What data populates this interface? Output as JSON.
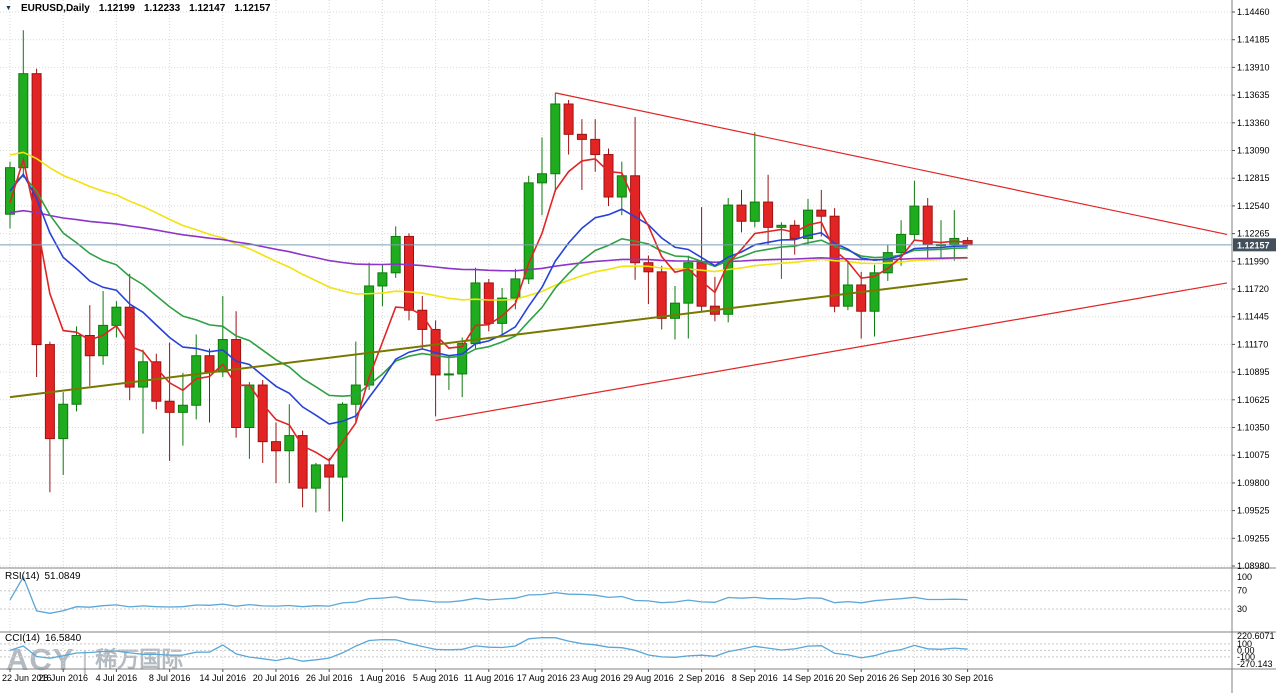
{
  "header": {
    "dropdown_icon": "▼",
    "symbol": "EURUSD,Daily",
    "open": "1.12199",
    "high": "1.12233",
    "low": "1.12147",
    "close": "1.12157"
  },
  "watermark": {
    "brand": "ACY",
    "divider": "|",
    "cjk": "稀万国际"
  },
  "price_axis": {
    "labels": [
      "1.14460",
      "1.14185",
      "1.13910",
      "1.13635",
      "1.13360",
      "1.13090",
      "1.12815",
      "1.12540",
      "1.12265",
      "1.11990",
      "1.11720",
      "1.11445",
      "1.11170",
      "1.10895",
      "1.10625",
      "1.10350",
      "1.10075",
      "1.09800",
      "1.09525",
      "1.09255",
      "1.08980"
    ],
    "current_price_label": "1.12157"
  },
  "time_axis": {
    "labels": [
      {
        "text": "22 Jun 2016",
        "index": 0
      },
      {
        "text": "28 Jun 2016",
        "index": 4
      },
      {
        "text": "4 Jul 2016",
        "index": 8
      },
      {
        "text": "8 Jul 2016",
        "index": 12
      },
      {
        "text": "14 Jul 2016",
        "index": 16
      },
      {
        "text": "20 Jul 2016",
        "index": 20
      },
      {
        "text": "26 Jul 2016",
        "index": 24
      },
      {
        "text": "1 Aug 2016",
        "index": 28
      },
      {
        "text": "5 Aug 2016",
        "index": 32
      },
      {
        "text": "11 Aug 2016",
        "index": 36
      },
      {
        "text": "17 Aug 2016",
        "index": 40
      },
      {
        "text": "23 Aug 2016",
        "index": 44
      },
      {
        "text": "29 Aug 2016",
        "index": 48
      },
      {
        "text": "2 Sep 2016",
        "index": 52
      },
      {
        "text": "8 Sep 2016",
        "index": 56
      },
      {
        "text": "14 Sep 2016",
        "index": 60
      },
      {
        "text": "20 Sep 2016",
        "index": 64
      },
      {
        "text": "26 Sep 2016",
        "index": 68
      },
      {
        "text": "30 Sep 2016",
        "index": 72
      }
    ]
  },
  "indicators": {
    "rsi": {
      "label": "RSI(14)",
      "value": "51.0849",
      "period": 14,
      "range": [
        0,
        100
      ],
      "levels": [
        70,
        30
      ],
      "axis_labels": [
        {
          "text": "100",
          "value": 100
        },
        {
          "text": "70",
          "value": 70
        },
        {
          "text": "30",
          "value": 30
        }
      ],
      "line_color": "#5ba7d7"
    },
    "cci": {
      "label": "CCI(14)",
      "value": "16.5840",
      "period": 14,
      "range": [
        -270.143,
        220.6071
      ],
      "levels": [
        100,
        0,
        -100
      ],
      "axis_labels": [
        {
          "text": "220.6071",
          "value": 220.6071
        },
        {
          "text": "100",
          "value": 100
        },
        {
          "text": "0.00",
          "value": 0
        },
        {
          "text": "-100",
          "value": -100
        },
        {
          "text": "-270.143",
          "value": -270.143
        }
      ],
      "line_color": "#5ba7d7"
    }
  },
  "chart_data": {
    "type": "candlestick",
    "title": "EURUSD Daily",
    "symbol": "EURUSD",
    "timeframe": "Daily",
    "price_axis_range": [
      1.0898,
      1.1446
    ],
    "current_price": 1.12157,
    "up_color": "#1fad1f",
    "up_border": "#0d7a0d",
    "down_color": "#e32424",
    "down_border": "#9c1212",
    "grid_color": "#d9d9d9",
    "bid_line_color": "#7e9fb5",
    "price_label_box_color": "#43505c",
    "candles": [
      [
        "22 Jun 2016",
        1.1246,
        1.1298,
        1.1232,
        1.1292
      ],
      [
        "23 Jun 2016",
        1.1292,
        1.1428,
        1.1282,
        1.1385
      ],
      [
        "24 Jun 2016",
        1.1385,
        1.139,
        1.1085,
        1.1117
      ],
      [
        "27 Jun 2016",
        1.1117,
        1.112,
        1.0971,
        1.1024
      ],
      [
        "28 Jun 2016",
        1.1024,
        1.107,
        1.0988,
        1.1058
      ],
      [
        "29 Jun 2016",
        1.1058,
        1.1135,
        1.1051,
        1.1126
      ],
      [
        "30 Jun 2016",
        1.1126,
        1.1156,
        1.1076,
        1.1106
      ],
      [
        "1 Jul 2016",
        1.1106,
        1.117,
        1.1097,
        1.1136
      ],
      [
        "4 Jul 2016",
        1.1136,
        1.116,
        1.1124,
        1.1154
      ],
      [
        "5 Jul 2016",
        1.1154,
        1.1187,
        1.1062,
        1.1075
      ],
      [
        "6 Jul 2016",
        1.1075,
        1.1112,
        1.1029,
        1.11
      ],
      [
        "7 Jul 2016",
        1.11,
        1.1108,
        1.1053,
        1.1061
      ],
      [
        "8 Jul 2016",
        1.1061,
        1.1119,
        1.1002,
        1.105
      ],
      [
        "11 Jul 2016",
        1.105,
        1.1089,
        1.1017,
        1.1057
      ],
      [
        "12 Jul 2016",
        1.1057,
        1.1127,
        1.1043,
        1.1106
      ],
      [
        "13 Jul 2016",
        1.1106,
        1.1113,
        1.104,
        1.109
      ],
      [
        "14 Jul 2016",
        1.109,
        1.1165,
        1.1085,
        1.1122
      ],
      [
        "15 Jul 2016",
        1.1122,
        1.115,
        1.1025,
        1.1035
      ],
      [
        "18 Jul 2016",
        1.1035,
        1.108,
        1.1004,
        1.1077
      ],
      [
        "19 Jul 2016",
        1.1077,
        1.1082,
        1.1,
        1.1021
      ],
      [
        "20 Jul 2016",
        1.1021,
        1.104,
        1.098,
        1.1012
      ],
      [
        "21 Jul 2016",
        1.1012,
        1.1058,
        1.098,
        1.1027
      ],
      [
        "22 Jul 2016",
        1.1027,
        1.1032,
        1.0956,
        1.0975
      ],
      [
        "25 Jul 2016",
        1.0975,
        1.1,
        1.0951,
        1.0998
      ],
      [
        "26 Jul 2016",
        1.0998,
        1.1005,
        1.0952,
        1.0986
      ],
      [
        "27 Jul 2016",
        1.0986,
        1.106,
        1.0942,
        1.1058
      ],
      [
        "28 Jul 2016",
        1.1058,
        1.112,
        1.104,
        1.1077
      ],
      [
        "29 Jul 2016",
        1.1077,
        1.1198,
        1.1072,
        1.1175
      ],
      [
        "1 Aug 2016",
        1.1175,
        1.1196,
        1.1155,
        1.1188
      ],
      [
        "2 Aug 2016",
        1.1188,
        1.1234,
        1.1183,
        1.1224
      ],
      [
        "3 Aug 2016",
        1.1224,
        1.1227,
        1.1141,
        1.1151
      ],
      [
        "4 Aug 2016",
        1.1151,
        1.1165,
        1.1112,
        1.1132
      ],
      [
        "5 Aug 2016",
        1.1132,
        1.1141,
        1.1046,
        1.1087
      ],
      [
        "8 Aug 2016",
        1.1087,
        1.1106,
        1.1072,
        1.1088
      ],
      [
        "9 Aug 2016",
        1.1088,
        1.1124,
        1.1065,
        1.1118
      ],
      [
        "10 Aug 2016",
        1.1118,
        1.1193,
        1.1112,
        1.1178
      ],
      [
        "11 Aug 2016",
        1.1178,
        1.1182,
        1.113,
        1.1138
      ],
      [
        "12 Aug 2016",
        1.1138,
        1.1173,
        1.1125,
        1.1163
      ],
      [
        "15 Aug 2016",
        1.1163,
        1.1192,
        1.1152,
        1.1182
      ],
      [
        "16 Aug 2016",
        1.1182,
        1.1284,
        1.1177,
        1.1277
      ],
      [
        "17 Aug 2016",
        1.1277,
        1.1322,
        1.1245,
        1.1286
      ],
      [
        "18 Aug 2016",
        1.1286,
        1.1366,
        1.1268,
        1.1355
      ],
      [
        "19 Aug 2016",
        1.1355,
        1.1359,
        1.1305,
        1.1325
      ],
      [
        "22 Aug 2016",
        1.1325,
        1.134,
        1.127,
        1.132
      ],
      [
        "23 Aug 2016",
        1.132,
        1.134,
        1.1288,
        1.1305
      ],
      [
        "24 Aug 2016",
        1.1305,
        1.1311,
        1.1254,
        1.1263
      ],
      [
        "25 Aug 2016",
        1.1263,
        1.1298,
        1.1245,
        1.1284
      ],
      [
        "26 Aug 2016",
        1.1284,
        1.1342,
        1.1181,
        1.1198
      ],
      [
        "29 Aug 2016",
        1.1198,
        1.1205,
        1.1157,
        1.1189
      ],
      [
        "30 Aug 2016",
        1.1189,
        1.1195,
        1.1132,
        1.1143
      ],
      [
        "31 Aug 2016",
        1.1143,
        1.1175,
        1.1122,
        1.1158
      ],
      [
        "1 Sep 2016",
        1.1158,
        1.1205,
        1.1123,
        1.1198
      ],
      [
        "2 Sep 2016",
        1.1198,
        1.1253,
        1.115,
        1.1155
      ],
      [
        "5 Sep 2016",
        1.1155,
        1.1184,
        1.114,
        1.1147
      ],
      [
        "6 Sep 2016",
        1.1147,
        1.1262,
        1.1139,
        1.1255
      ],
      [
        "7 Sep 2016",
        1.1255,
        1.127,
        1.1228,
        1.1239
      ],
      [
        "8 Sep 2016",
        1.1239,
        1.1327,
        1.1233,
        1.1258
      ],
      [
        "9 Sep 2016",
        1.1258,
        1.1285,
        1.1216,
        1.1233
      ],
      [
        "12 Sep 2016",
        1.1233,
        1.1238,
        1.1182,
        1.1235
      ],
      [
        "13 Sep 2016",
        1.1235,
        1.124,
        1.1206,
        1.1222
      ],
      [
        "14 Sep 2016",
        1.1222,
        1.1261,
        1.1216,
        1.125
      ],
      [
        "15 Sep 2016",
        1.125,
        1.127,
        1.1224,
        1.1244
      ],
      [
        "16 Sep 2016",
        1.1244,
        1.1252,
        1.1149,
        1.1155
      ],
      [
        "19 Sep 2016",
        1.1155,
        1.12,
        1.1151,
        1.1176
      ],
      [
        "20 Sep 2016",
        1.1176,
        1.1189,
        1.1123,
        1.115
      ],
      [
        "21 Sep 2016",
        1.115,
        1.1196,
        1.1125,
        1.1188
      ],
      [
        "22 Sep 2016",
        1.1188,
        1.1216,
        1.118,
        1.1208
      ],
      [
        "23 Sep 2016",
        1.1208,
        1.124,
        1.1195,
        1.1226
      ],
      [
        "26 Sep 2016",
        1.1226,
        1.1279,
        1.1221,
        1.1254
      ],
      [
        "27 Sep 2016",
        1.1254,
        1.1262,
        1.1203,
        1.1216
      ],
      [
        "28 Sep 2016",
        1.1216,
        1.124,
        1.1202,
        1.1216
      ],
      [
        "29 Sep 2016",
        1.1216,
        1.125,
        1.12,
        1.1222
      ],
      [
        "30 Sep 2016",
        1.12199,
        1.12233,
        1.12147,
        1.12157
      ]
    ],
    "moving_averages": [
      {
        "name": "ma-yellow",
        "period": 60,
        "start": 1.1305,
        "color": "#f2e20e"
      },
      {
        "name": "ma-purple",
        "period": 150,
        "start": 1.1247,
        "color": "#8c35c8"
      },
      {
        "name": "ma-green",
        "period": 20,
        "start": 1.1272,
        "color": "#2fa043"
      },
      {
        "name": "ma-blue",
        "period": 13,
        "start": 1.1265,
        "color": "#2742d8"
      },
      {
        "name": "ma-red",
        "period": 5,
        "start": 1.124,
        "color": "#e02525"
      }
    ],
    "trendlines": [
      {
        "name": "triangle-upper-trendline",
        "color": "#e02525",
        "width": 1.2,
        "from": [
          41,
          1.1366
        ],
        "to": [
          91.5,
          1.1226
        ]
      },
      {
        "name": "triangle-lower-trendline",
        "color": "#e02525",
        "width": 1.2,
        "from": [
          32,
          1.1042
        ],
        "to": [
          91.5,
          1.1178
        ]
      },
      {
        "name": "long-term-support-line",
        "color": "#787800",
        "width": 2,
        "from": [
          0,
          1.1065
        ],
        "to": [
          72,
          1.1182
        ]
      }
    ]
  }
}
